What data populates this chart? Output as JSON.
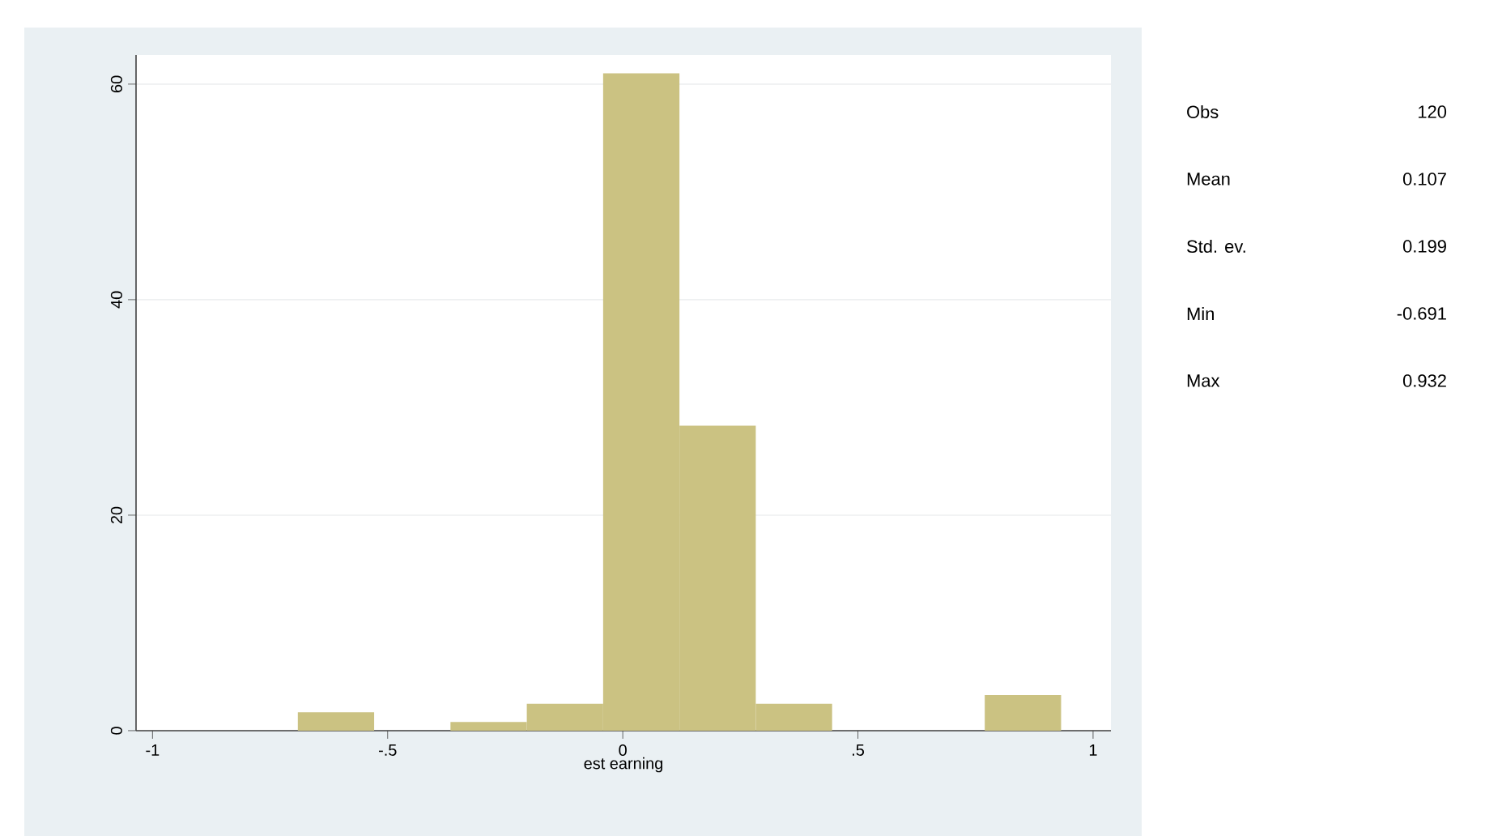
{
  "chart_data": {
    "type": "histogram",
    "xlabel": "est  earning",
    "bins": [
      -0.691,
      -0.5287,
      -0.3664,
      -0.2041,
      -0.0418,
      0.1205,
      0.2828,
      0.4451,
      0.6074,
      0.7697,
      0.932
    ],
    "values": [
      1.7,
      0,
      0.8,
      2.5,
      61,
      28.3,
      2.5,
      0,
      0,
      3.3
    ],
    "color": "#cbc282",
    "xlim": [
      -1.035,
      1.038
    ],
    "ylim": [
      0,
      62.7
    ],
    "xticks": [
      {
        "value": -1,
        "label": "-1"
      },
      {
        "value": -0.5,
        "label": "-.5"
      },
      0,
      {
        "value": 0.5,
        "label": ".5"
      },
      1
    ],
    "yticks": [
      0,
      20,
      40,
      60
    ],
    "grid": "y",
    "annotations": [
      "Obs",
      "120",
      "Mean",
      "0.107",
      "Std. ev.",
      "0.199",
      "Min",
      "-0.691",
      "Max",
      "0.932"
    ]
  }
}
